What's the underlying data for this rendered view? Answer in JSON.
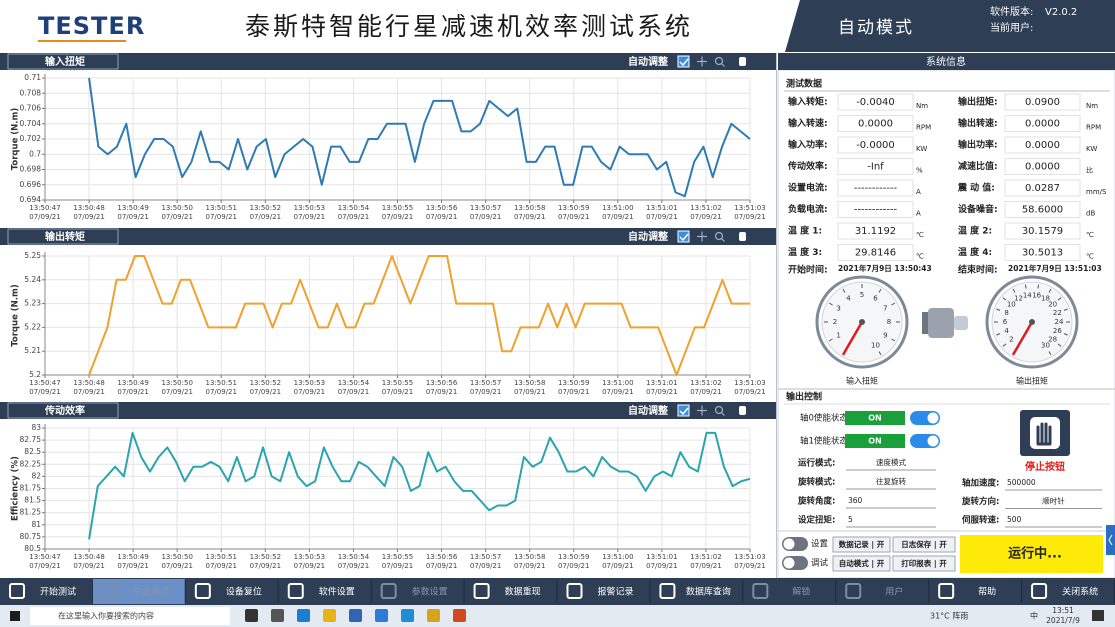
{
  "header": {
    "logo": "TESTER",
    "title": "泰斯特智能行星减速机效率测试系统",
    "mode": "自动模式",
    "version_label": "软件版本:",
    "version": "V2.0.2",
    "user_label": "当前用户:"
  },
  "chart_data": [
    {
      "type": "line",
      "title": "输入扭矩",
      "toolbar": "自动调整",
      "ylabel": "Torque (N.m)",
      "color": "#2e7bb4",
      "grid": true,
      "xticks": [
        "13:50:47",
        "13:50:48",
        "13:50:49",
        "13:50:50",
        "13:50:51",
        "13:50:52",
        "13:50:53",
        "13:50:54",
        "13:50:55",
        "13:50:56",
        "13:50:57",
        "13:50:58",
        "13:50:59",
        "13:51:00",
        "13:51:01",
        "13:51:02",
        "13:51:03"
      ],
      "xtick_date": "07/09/21",
      "ylim": [
        0.694,
        0.71
      ],
      "yticks": [
        0.694,
        0.696,
        0.698,
        0.7,
        0.702,
        0.704,
        0.706,
        0.708,
        0.71
      ],
      "values": [
        0.71,
        0.701,
        0.7,
        0.701,
        0.704,
        0.697,
        0.7,
        0.702,
        0.702,
        0.701,
        0.697,
        0.699,
        0.703,
        0.699,
        0.699,
        0.698,
        0.702,
        0.698,
        0.701,
        0.702,
        0.697,
        0.7,
        0.701,
        0.702,
        0.701,
        0.696,
        0.701,
        0.701,
        0.699,
        0.699,
        0.702,
        0.702,
        0.704,
        0.704,
        0.704,
        0.699,
        0.704,
        0.707,
        0.707,
        0.707,
        0.703,
        0.703,
        0.704,
        0.707,
        0.706,
        0.705,
        0.706,
        0.699,
        0.699,
        0.701,
        0.701,
        0.696,
        0.696,
        0.701,
        0.701,
        0.699,
        0.698,
        0.701,
        0.7,
        0.7,
        0.7,
        0.698,
        0.699,
        0.695,
        0.6945,
        0.699,
        0.701,
        0.697,
        0.701,
        0.704,
        0.703,
        0.702
      ]
    },
    {
      "type": "line",
      "title": "输出转矩",
      "toolbar": "自动调整",
      "ylabel": "Torque (N.m)",
      "color": "#f0a02c",
      "grid": true,
      "xticks": [
        "13:50:47",
        "13:50:48",
        "13:50:49",
        "13:50:50",
        "13:50:51",
        "13:50:52",
        "13:50:53",
        "13:50:54",
        "13:50:55",
        "13:50:56",
        "13:50:57",
        "13:50:58",
        "13:50:59",
        "13:51:00",
        "13:51:01",
        "13:51:02",
        "13:51:03"
      ],
      "xtick_date": "07/09/21",
      "ylim": [
        5.2,
        5.25
      ],
      "yticks": [
        5.2,
        5.21,
        5.22,
        5.23,
        5.24,
        5.25
      ],
      "values": [
        5.2,
        5.21,
        5.22,
        5.24,
        5.24,
        5.25,
        5.25,
        5.24,
        5.23,
        5.23,
        5.24,
        5.24,
        5.23,
        5.22,
        5.22,
        5.22,
        5.22,
        5.23,
        5.23,
        5.23,
        5.22,
        5.23,
        5.23,
        5.24,
        5.23,
        5.22,
        5.22,
        5.23,
        5.22,
        5.22,
        5.23,
        5.23,
        5.24,
        5.25,
        5.24,
        5.23,
        5.24,
        5.25,
        5.25,
        5.25,
        5.23,
        5.23,
        5.23,
        5.23,
        5.23,
        5.21,
        5.21,
        5.22,
        5.22,
        5.22,
        5.23,
        5.22,
        5.23,
        5.22,
        5.23,
        5.23,
        5.23,
        5.23,
        5.23,
        5.22,
        5.22,
        5.22,
        5.22,
        5.21,
        5.2,
        5.21,
        5.22,
        5.22,
        5.23,
        5.24,
        5.23,
        5.23,
        5.23
      ]
    },
    {
      "type": "line",
      "title": "传动效率",
      "toolbar": "自动调整",
      "ylabel": "Efficiency (%)",
      "color": "#2aa5b0",
      "grid": true,
      "xticks": [
        "13:50:47",
        "13:50:48",
        "13:50:49",
        "13:50:50",
        "13:50:51",
        "13:50:52",
        "13:50:53",
        "13:50:54",
        "13:50:55",
        "13:50:56",
        "13:50:57",
        "13:50:58",
        "13:50:59",
        "13:51:00",
        "13:51:01",
        "13:51:02",
        "13:51:03"
      ],
      "xtick_date": "07/09/21",
      "ylim": [
        80.5,
        83
      ],
      "yticks": [
        80.5,
        80.75,
        81,
        81.25,
        81.5,
        81.75,
        82,
        82.25,
        82.5,
        82.75,
        83
      ],
      "values": [
        80.7,
        81.8,
        82.0,
        82.2,
        82.0,
        82.9,
        82.4,
        82.1,
        82.4,
        82.6,
        82.3,
        81.9,
        82.2,
        82.2,
        82.3,
        82.2,
        81.9,
        82.4,
        81.9,
        82.0,
        82.6,
        82.0,
        81.9,
        82.5,
        82.0,
        81.8,
        81.9,
        82.6,
        82.2,
        81.9,
        81.9,
        82.3,
        82.2,
        82.0,
        81.8,
        82.4,
        82.2,
        81.7,
        81.8,
        82.5,
        82.1,
        82.2,
        81.9,
        81.7,
        81.7,
        81.5,
        81.3,
        81.4,
        81.4,
        81.5,
        82.4,
        82.2,
        82.3,
        82.8,
        82.5,
        82.1,
        82.1,
        82.2,
        82.0,
        82.4,
        82.2,
        82.1,
        82.1,
        82.0,
        81.7,
        82.0,
        82.1,
        82.0,
        82.5,
        82.2,
        82.1,
        82.9,
        82.9,
        82.2,
        81.8,
        81.9,
        81.95
      ]
    }
  ],
  "system_info": {
    "title": "系统信息",
    "section": "测试数据",
    "left": [
      {
        "label": "输入转矩:",
        "value": "-0.0040",
        "unit": "Nm"
      },
      {
        "label": "输入转速:",
        "value": "0.0000",
        "unit": "RPM"
      },
      {
        "label": "输入功率:",
        "value": "-0.0000",
        "unit": "KW"
      },
      {
        "label": "传动效率:",
        "value": "-Inf",
        "unit": "%"
      },
      {
        "label": "设置电流:",
        "value": "------------",
        "unit": "A"
      },
      {
        "label": "负载电流:",
        "value": "------------",
        "unit": "A"
      },
      {
        "label": "温 度 1:",
        "value": "31.1192",
        "unit": "℃"
      },
      {
        "label": "温 度 3:",
        "value": "29.8146",
        "unit": "℃"
      }
    ],
    "right": [
      {
        "label": "输出扭矩:",
        "value": "0.0900",
        "unit": "Nm"
      },
      {
        "label": "输出转速:",
        "value": "0.0000",
        "unit": "RPM"
      },
      {
        "label": "输出功率:",
        "value": "0.0000",
        "unit": "KW"
      },
      {
        "label": "减速比值:",
        "value": "0.0000",
        "unit": "比"
      },
      {
        "label": "震 动 值:",
        "value": "0.0287",
        "unit": "mm/S"
      },
      {
        "label": "设备噪音:",
        "value": "58.6000",
        "unit": "dB"
      },
      {
        "label": "温 度 2:",
        "value": "30.1579",
        "unit": "℃"
      },
      {
        "label": "温 度 4:",
        "value": "30.5013",
        "unit": "℃"
      }
    ],
    "times": [
      {
        "label": "开始时间:",
        "value": "2021年7月9日 13:50:43"
      },
      {
        "label": "结束时间:",
        "value": "2021年7月9日 13:51:03"
      }
    ]
  },
  "gauges": [
    {
      "name": "输入扭矩",
      "lim": [
        0,
        10
      ],
      "labels": [
        1,
        2,
        3,
        4,
        5,
        6,
        7,
        8,
        9,
        10
      ],
      "value": 0
    },
    {
      "name": "输出扭矩",
      "lim": [
        0,
        30
      ],
      "labels": [
        2,
        4,
        6,
        8,
        10,
        12,
        14,
        16,
        18,
        20,
        22,
        24,
        26,
        28,
        30
      ],
      "value": 0
    }
  ],
  "output_control": {
    "title": "输出控制",
    "axes": [
      {
        "label": "轴0使能状态",
        "state": "ON"
      },
      {
        "label": "轴1使能状态",
        "state": "ON"
      }
    ],
    "stop": "停止按钮",
    "left": [
      {
        "label": "运行模式:",
        "value": "速度模式"
      },
      {
        "label": "旋转模式:",
        "value": "往复旋转"
      },
      {
        "label": "旋转角度:",
        "value": "360"
      },
      {
        "label": "设定扭矩:",
        "value": "5"
      }
    ],
    "right": [
      {
        "label": "轴加速度:",
        "value": "500000"
      },
      {
        "label": "旋转方向:",
        "value": "顺时针"
      },
      {
        "label": "伺服转速:",
        "value": "500"
      }
    ],
    "switches": [
      "设置",
      "调试"
    ],
    "buttons": [
      "数据记录 | 开",
      "日志保存 | 开",
      "自动模式 | 开",
      "打印报表 | 开"
    ],
    "status": "运行中..."
  },
  "toolbar": [
    {
      "label": "开始测试"
    },
    {
      "label": "中止测试",
      "disabled": true
    },
    {
      "label": "设备复位"
    },
    {
      "label": "软件设置"
    },
    {
      "label": "参数设置",
      "disabled": true
    },
    {
      "label": "数据重现"
    },
    {
      "label": "报警记录"
    },
    {
      "label": "数据库查询"
    },
    {
      "label": "解锁",
      "disabled": true
    },
    {
      "label": "用户",
      "disabled": true
    },
    {
      "label": "帮助"
    },
    {
      "label": "关闭系统"
    }
  ],
  "taskbar": {
    "search": "在这里输入你要搜索的内容",
    "weather": "31°C 阵雨",
    "ime": "中",
    "time": "13:51",
    "date": "2021/7/9"
  }
}
